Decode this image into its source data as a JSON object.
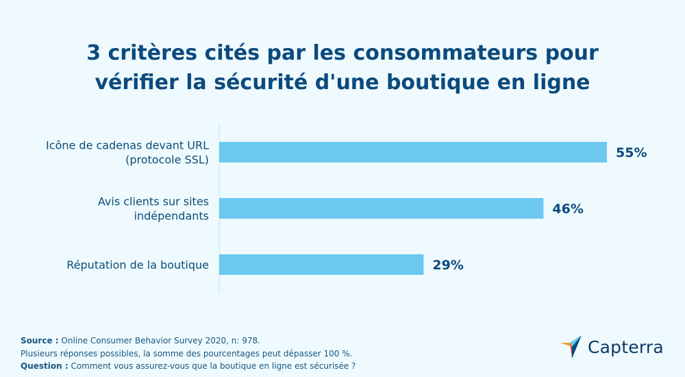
{
  "title_line1": "3 critères cités par les consommateurs pour",
  "title_line2": "vérifier la sécurité d'une boutique en ligne",
  "chart_data": {
    "type": "bar",
    "orientation": "horizontal",
    "title": "3 critères cités par les consommateurs pour vérifier la sécurité d'une boutique en ligne",
    "categories": [
      [
        "Icône de cadenas devant URL",
        "(protocole SSL)"
      ],
      [
        "Avis clients sur sites",
        "indépendants"
      ],
      [
        "Réputation de la boutique"
      ]
    ],
    "values": [
      55,
      46,
      29
    ],
    "value_labels": [
      "55%",
      "46%",
      "29%"
    ],
    "unit": "%",
    "xlim": [
      0,
      55
    ],
    "bar_color": "#6cc8ef",
    "axis_color": "#bfe4f3"
  },
  "footer": {
    "source_label": "Source :",
    "source_text": " Online Consumer Behavior Survey 2020, n: 978.",
    "note": "Plusieurs réponses possibles, la somme des pourcentages peut dépasser 100 %.",
    "question_label": "Question :",
    "question_text": " Comment vous assurez-vous que la boutique en ligne est sécurisée ?"
  },
  "logo": {
    "text": "Capterra",
    "icon": "capterra-arrow-icon",
    "colors": [
      "#ff9d28",
      "#68c5ed",
      "#044d80",
      "#e54747"
    ]
  }
}
